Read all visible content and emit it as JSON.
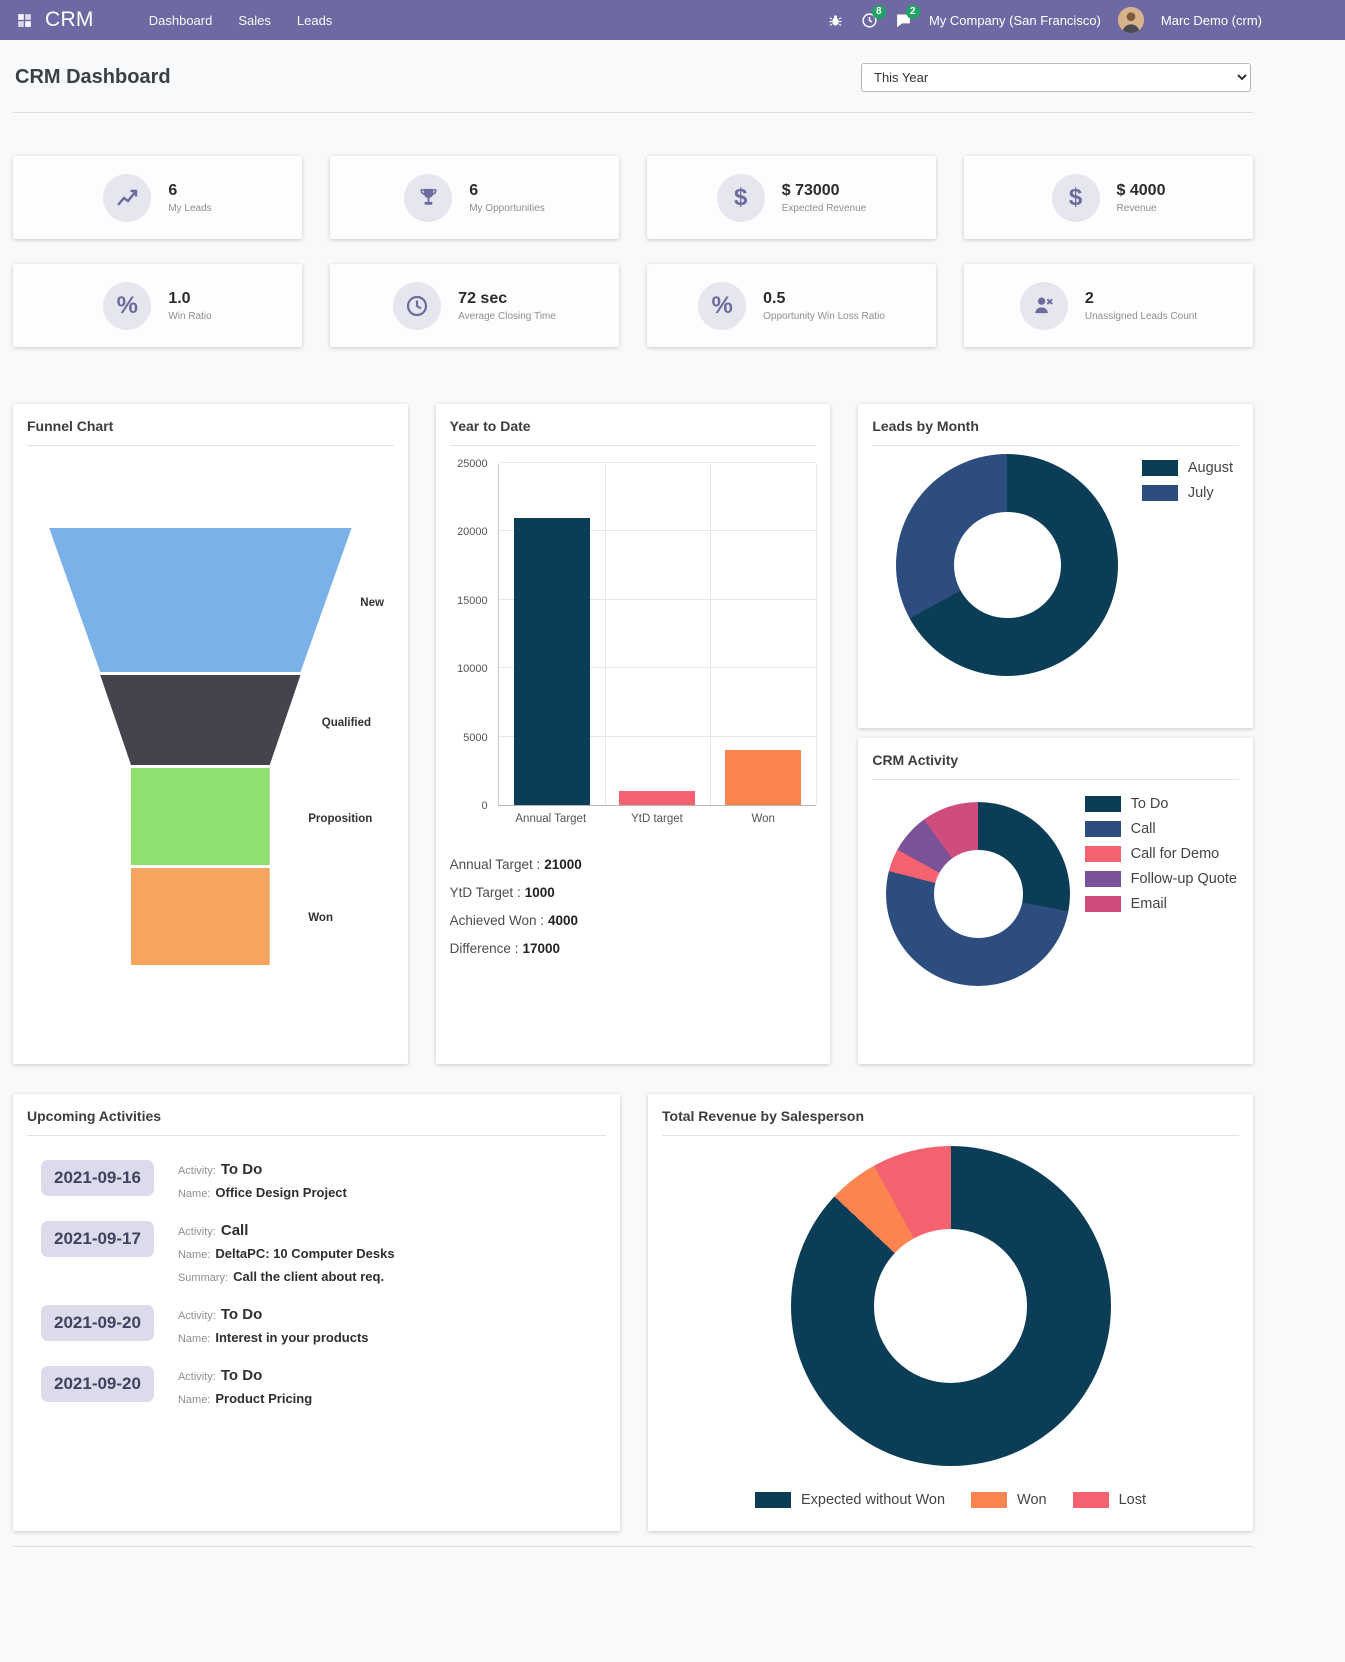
{
  "colors": {
    "navbar_bg": "#6f69a3",
    "badge_green": "#1fa463",
    "accent_purple": "#6b6b9e"
  },
  "navbar": {
    "brand": "CRM",
    "menu": [
      "Dashboard",
      "Sales",
      "Leads"
    ],
    "activities_badge": "8",
    "messages_badge": "2",
    "company": "My Company (San Francisco)",
    "user": "Marc Demo (crm)"
  },
  "header": {
    "title": "CRM Dashboard",
    "filter_value": "This Year"
  },
  "kpis": [
    {
      "icon": "line-chart-icon",
      "value": "6",
      "label": "My Leads"
    },
    {
      "icon": "trophy-icon",
      "value": "6",
      "label": "My Opportunities"
    },
    {
      "icon": "dollar-icon",
      "value": "$ 73000",
      "label": "Expected Revenue"
    },
    {
      "icon": "dollar-icon",
      "value": "$ 4000",
      "label": "Revenue"
    },
    {
      "icon": "percent-icon",
      "value": "1.0",
      "label": "Win Ratio"
    },
    {
      "icon": "clock-icon",
      "value": "72 sec",
      "label": "Average Closing Time"
    },
    {
      "icon": "percent-icon",
      "value": "0.5",
      "label": "Opportunity Win Loss Ratio"
    },
    {
      "icon": "user-x-icon",
      "value": "2",
      "label": "Unassigned Leads Count"
    }
  ],
  "chart_data": [
    {
      "id": "funnel",
      "type": "funnel",
      "title": "Funnel Chart",
      "stages": [
        "New",
        "Qualified",
        "Proposition",
        "Won"
      ],
      "colors": [
        "#7ab1e8",
        "#45434c",
        "#8fe06f",
        "#f5a55f"
      ]
    },
    {
      "id": "ytd",
      "type": "bar",
      "title": "Year to Date",
      "categories": [
        "Annual Target",
        "YtD target",
        "Won"
      ],
      "values": [
        21000,
        1000,
        4000
      ],
      "colors": [
        "#0c3d56",
        "#f4616f",
        "#fc8450"
      ],
      "xlabel": "",
      "ylabel": "",
      "ylim": [
        0,
        25000
      ],
      "yticks": [
        0,
        5000,
        10000,
        15000,
        20000,
        25000
      ],
      "grid": true,
      "summary": [
        {
          "label": "Annual Target :",
          "value": "21000"
        },
        {
          "label": "YtD Target :",
          "value": "1000"
        },
        {
          "label": "Achieved Won :",
          "value": "4000"
        },
        {
          "label": "Difference :",
          "value": "17000"
        }
      ]
    },
    {
      "id": "leads_by_month",
      "type": "pie",
      "title": "Leads by Month",
      "legend_position": "right",
      "slices": [
        {
          "label": "August",
          "value": 67,
          "color": "#0c3d56"
        },
        {
          "label": "July",
          "value": 33,
          "color": "#2d4d7e"
        }
      ]
    },
    {
      "id": "crm_activity",
      "type": "pie",
      "title": "CRM Activity",
      "legend_position": "right",
      "slices": [
        {
          "label": "To Do",
          "value": 28,
          "color": "#0c3d56"
        },
        {
          "label": "Call",
          "value": 51,
          "color": "#2d4d7e"
        },
        {
          "label": "Call for Demo",
          "value": 4,
          "color": "#f4616f"
        },
        {
          "label": "Follow-up Quote",
          "value": 7,
          "color": "#7b5298"
        },
        {
          "label": "Email",
          "value": 10,
          "color": "#ce4d7c"
        }
      ]
    },
    {
      "id": "revenue_by_salesperson",
      "type": "pie",
      "title": "Total Revenue by Salesperson",
      "legend_position": "bottom",
      "slices": [
        {
          "label": "Expected without Won",
          "value": 87,
          "color": "#0c3d56"
        },
        {
          "label": "Won",
          "value": 5,
          "color": "#fc8450"
        },
        {
          "label": "Lost",
          "value": 8,
          "color": "#f4616f"
        }
      ]
    }
  ],
  "upcoming": {
    "title": "Upcoming Activities",
    "labels": {
      "activity": "Activity:",
      "name": "Name:",
      "summary": "Summary:"
    },
    "items": [
      {
        "date": "2021-09-16",
        "activity": "To Do",
        "name": "Office Design Project"
      },
      {
        "date": "2021-09-17",
        "activity": "Call",
        "name": "DeltaPC: 10 Computer Desks",
        "summary": "Call the client about req."
      },
      {
        "date": "2021-09-20",
        "activity": "To Do",
        "name": "Interest in your products"
      },
      {
        "date": "2021-09-20",
        "activity": "To Do",
        "name": "Product Pricing"
      }
    ]
  }
}
